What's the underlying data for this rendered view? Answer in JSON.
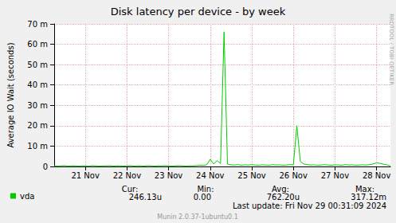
{
  "chart_data": {
    "type": "line",
    "title": "Disk latency per device - by week",
    "y_label": "Average IO Wait (seconds)",
    "categories": [
      null,
      null,
      null,
      null,
      null,
      null,
      null,
      null,
      null,
      "21 Nov",
      null,
      null,
      null,
      null,
      null,
      null,
      null,
      null,
      null,
      null,
      null,
      "22 Nov",
      null,
      null,
      null,
      null,
      null,
      null,
      null,
      null,
      null,
      null,
      null,
      "23 Nov",
      null,
      null,
      null,
      null,
      null,
      null,
      null,
      null,
      null,
      null,
      null,
      "24 Nov",
      null,
      null,
      null,
      null,
      null,
      null,
      null,
      null,
      null,
      null,
      null,
      "25 Nov",
      null,
      null,
      null,
      null,
      null,
      null,
      null,
      null,
      null,
      null,
      null,
      "26 Nov",
      null,
      null,
      null,
      null,
      null,
      null,
      null,
      null,
      null,
      null,
      null,
      "27 Nov",
      null,
      null,
      null,
      null,
      null,
      null,
      null,
      null,
      null,
      null,
      null,
      "28 Nov",
      null,
      null,
      null,
      null
    ],
    "series": [
      {
        "name": "vda",
        "color": "#00CC00",
        "values": [
          0.0003,
          0.0002,
          0.0003,
          0.0004,
          0.0002,
          0.0003,
          0.0003,
          0.0002,
          0.0003,
          0.0003,
          0.0002,
          0.0004,
          0.0003,
          0.0002,
          0.0003,
          0.0003,
          0.0004,
          0.0002,
          0.0003,
          0.0003,
          0.0002,
          0.0003,
          0.0004,
          0.0002,
          0.0003,
          0.0003,
          0.0002,
          0.0004,
          0.0003,
          0.0002,
          0.0003,
          0.0003,
          0.0004,
          0.0003,
          0.0002,
          0.0003,
          0.0004,
          0.0003,
          0.0002,
          0.0003,
          0.0003,
          0.0004,
          0.0006,
          0.0005,
          0.0008,
          0.0035,
          0.0012,
          0.0028,
          0.0015,
          0.066,
          0.0012,
          0.0008,
          0.0007,
          0.0009,
          0.0006,
          0.0008,
          0.0007,
          0.0009,
          0.0007,
          0.0006,
          0.0008,
          0.0007,
          0.0006,
          0.0009,
          0.0007,
          0.0008,
          0.0006,
          0.0007,
          0.0009,
          0.0008,
          0.02,
          0.0025,
          0.0012,
          0.0009,
          0.0007,
          0.0008,
          0.0006,
          0.0007,
          0.0009,
          0.0007,
          0.0006,
          0.0008,
          0.0007,
          0.0006,
          0.0009,
          0.0007,
          0.0008,
          0.0006,
          0.0007,
          0.0008,
          0.0007,
          0.0009,
          0.0012,
          0.0018,
          0.0015,
          0.0011,
          0.0008,
          0.00025
        ]
      }
    ],
    "ylim": [
      0,
      0.07
    ],
    "yticks": [
      0,
      {
        "value": 0.01,
        "label": "10 m"
      },
      {
        "value": 0.02,
        "label": "20 m"
      },
      {
        "value": 0.03,
        "label": "30 m"
      },
      {
        "value": 0.04,
        "label": "40 m"
      },
      {
        "value": 0.05,
        "label": "50 m"
      },
      {
        "value": 0.06,
        "label": "60 m"
      },
      {
        "value": 0.07,
        "label": "70 m"
      }
    ],
    "grid": true,
    "legend": "bottom-left",
    "annotations": {
      "stat_labels": [
        "Cur:",
        "Min:",
        "Avg:",
        "Max:"
      ],
      "stat_values": [
        "246.13u",
        "0.00",
        "762.20u",
        "317.12m"
      ],
      "last_update": "Last update: Fri Nov 29 00:31:09 2024",
      "footer": "Munin 2.0.37-1ubuntu0.1",
      "watermark": "RRDTOOL / TOBI OETIKER"
    }
  }
}
